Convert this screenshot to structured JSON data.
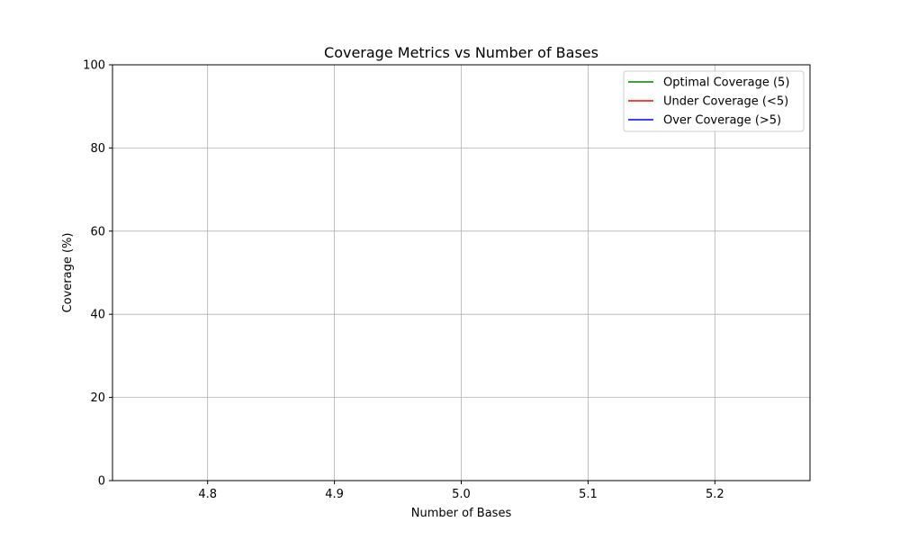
{
  "chart_data": {
    "type": "line",
    "title": "Coverage Metrics vs Number of Bases",
    "xlabel": "Number of Bases",
    "ylabel": "Coverage (%)",
    "xlim": [
      4.725,
      5.275
    ],
    "ylim": [
      0,
      100
    ],
    "xticks": [
      {
        "value": 4.8,
        "label": "4.8"
      },
      {
        "value": 4.9,
        "label": "4.9"
      },
      {
        "value": 5.0,
        "label": "5.0"
      },
      {
        "value": 5.1,
        "label": "5.1"
      },
      {
        "value": 5.2,
        "label": "5.2"
      }
    ],
    "yticks": [
      {
        "value": 0,
        "label": "0"
      },
      {
        "value": 20,
        "label": "20"
      },
      {
        "value": 40,
        "label": "40"
      },
      {
        "value": 60,
        "label": "60"
      },
      {
        "value": 80,
        "label": "80"
      },
      {
        "value": 100,
        "label": "100"
      }
    ],
    "grid": true,
    "legend_position": "top-right",
    "series": [
      {
        "name": "Optimal Coverage (5)",
        "color": "#008000",
        "x": [],
        "y": []
      },
      {
        "name": "Under Coverage (<5)",
        "color": "#ff0000",
        "x": [],
        "y": []
      },
      {
        "name": "Over Coverage (>5)",
        "color": "#0000ff",
        "x": [],
        "y": []
      }
    ]
  }
}
